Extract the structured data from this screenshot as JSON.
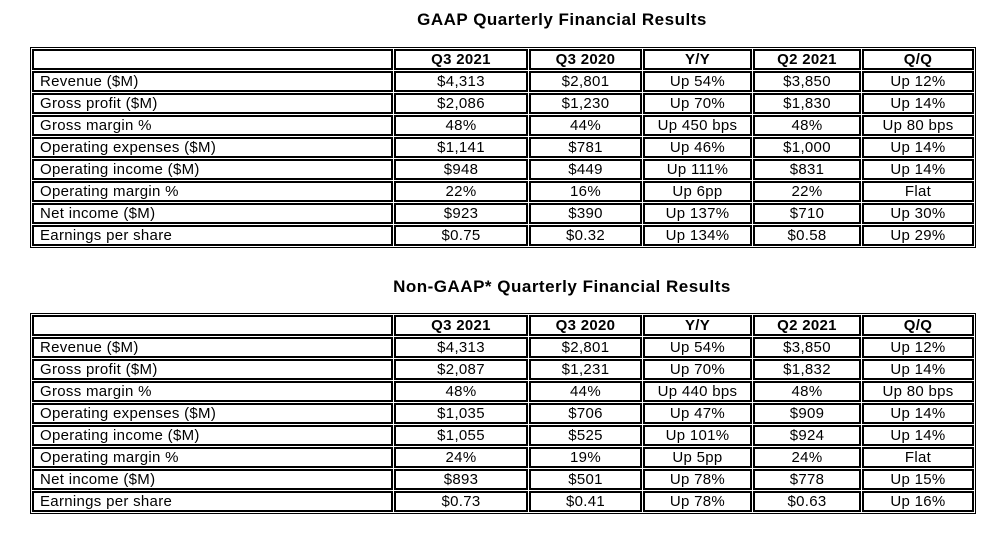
{
  "page": {
    "background_color": "#ffffff",
    "text_color": "#000000",
    "border_color": "#000000"
  },
  "tables": [
    {
      "title": "GAAP Quarterly Financial Results",
      "columns": [
        "",
        "Q3 2021",
        "Q3 2020",
        "Y/Y",
        "Q2 2021",
        "Q/Q"
      ],
      "rows": [
        {
          "label": "Revenue ($M)",
          "values": [
            "$4,313",
            "$2,801",
            "Up 54%",
            "$3,850",
            "Up 12%"
          ]
        },
        {
          "label": "Gross profit ($M)",
          "values": [
            "$2,086",
            "$1,230",
            "Up 70%",
            "$1,830",
            "Up 14%"
          ]
        },
        {
          "label": "Gross margin %",
          "values": [
            "48%",
            "44%",
            "Up 450 bps",
            "48%",
            "Up 80 bps"
          ]
        },
        {
          "label": "Operating expenses ($M)",
          "values": [
            "$1,141",
            "$781",
            "Up 46%",
            "$1,000",
            "Up 14%"
          ]
        },
        {
          "label": "Operating income ($M)",
          "values": [
            "$948",
            "$449",
            "Up 111%",
            "$831",
            "Up 14%"
          ]
        },
        {
          "label": "Operating margin %",
          "values": [
            "22%",
            "16%",
            "Up 6pp",
            "22%",
            "Flat"
          ]
        },
        {
          "label": "Net income ($M)",
          "values": [
            "$923",
            "$390",
            "Up 137%",
            "$710",
            "Up 30%"
          ]
        },
        {
          "label": "Earnings per share",
          "values": [
            "$0.75",
            "$0.32",
            "Up 134%",
            "$0.58",
            "Up 29%"
          ]
        }
      ]
    },
    {
      "title": "Non-GAAP* Quarterly Financial Results",
      "columns": [
        "",
        "Q3 2021",
        "Q3 2020",
        "Y/Y",
        "Q2 2021",
        "Q/Q"
      ],
      "rows": [
        {
          "label": "Revenue ($M)",
          "values": [
            "$4,313",
            "$2,801",
            "Up 54%",
            "$3,850",
            "Up 12%"
          ]
        },
        {
          "label": "Gross profit ($M)",
          "values": [
            "$2,087",
            "$1,231",
            "Up 70%",
            "$1,832",
            "Up 14%"
          ]
        },
        {
          "label": "Gross margin %",
          "values": [
            "48%",
            "44%",
            "Up 440 bps",
            "48%",
            "Up 80 bps"
          ]
        },
        {
          "label": "Operating expenses ($M)",
          "values": [
            "$1,035",
            "$706",
            "Up 47%",
            "$909",
            "Up 14%"
          ]
        },
        {
          "label": "Operating income ($M)",
          "values": [
            "$1,055",
            "$525",
            "Up 101%",
            "$924",
            "Up 14%"
          ]
        },
        {
          "label": "Operating margin %",
          "values": [
            "24%",
            "19%",
            "Up 5pp",
            "24%",
            "Flat"
          ]
        },
        {
          "label": "Net income ($M)",
          "values": [
            "$893",
            "$501",
            "Up 78%",
            "$778",
            "Up 15%"
          ]
        },
        {
          "label": "Earnings per share",
          "values": [
            "$0.73",
            "$0.41",
            "Up 78%",
            "$0.63",
            "Up 16%"
          ]
        }
      ]
    }
  ]
}
